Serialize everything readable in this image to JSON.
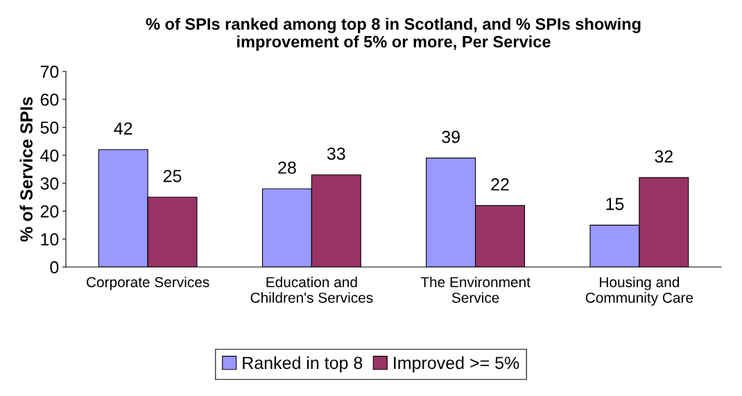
{
  "chart_data": {
    "type": "bar",
    "title": "% of SPIs ranked among top 8 in Scotland, and % SPIs showing\nimprovement of 5% or more, Per Service",
    "ylabel": "% of Service SPIs",
    "categories": [
      "Corporate Services",
      "Education and\nChildren's Services",
      "The Environment\nService",
      "Housing and\nCommunity Care"
    ],
    "series": [
      {
        "name": "Ranked in top 8",
        "color": "#9999ff",
        "values": [
          42,
          28,
          39,
          15
        ]
      },
      {
        "name": "Improved >= 5%",
        "color": "#993366",
        "values": [
          25,
          33,
          22,
          32
        ]
      }
    ],
    "ylim": [
      0,
      70
    ],
    "yticks": [
      0,
      10,
      20,
      30,
      40,
      50,
      60,
      70
    ],
    "grid": false,
    "legend": "bottom",
    "data_labels": true
  }
}
